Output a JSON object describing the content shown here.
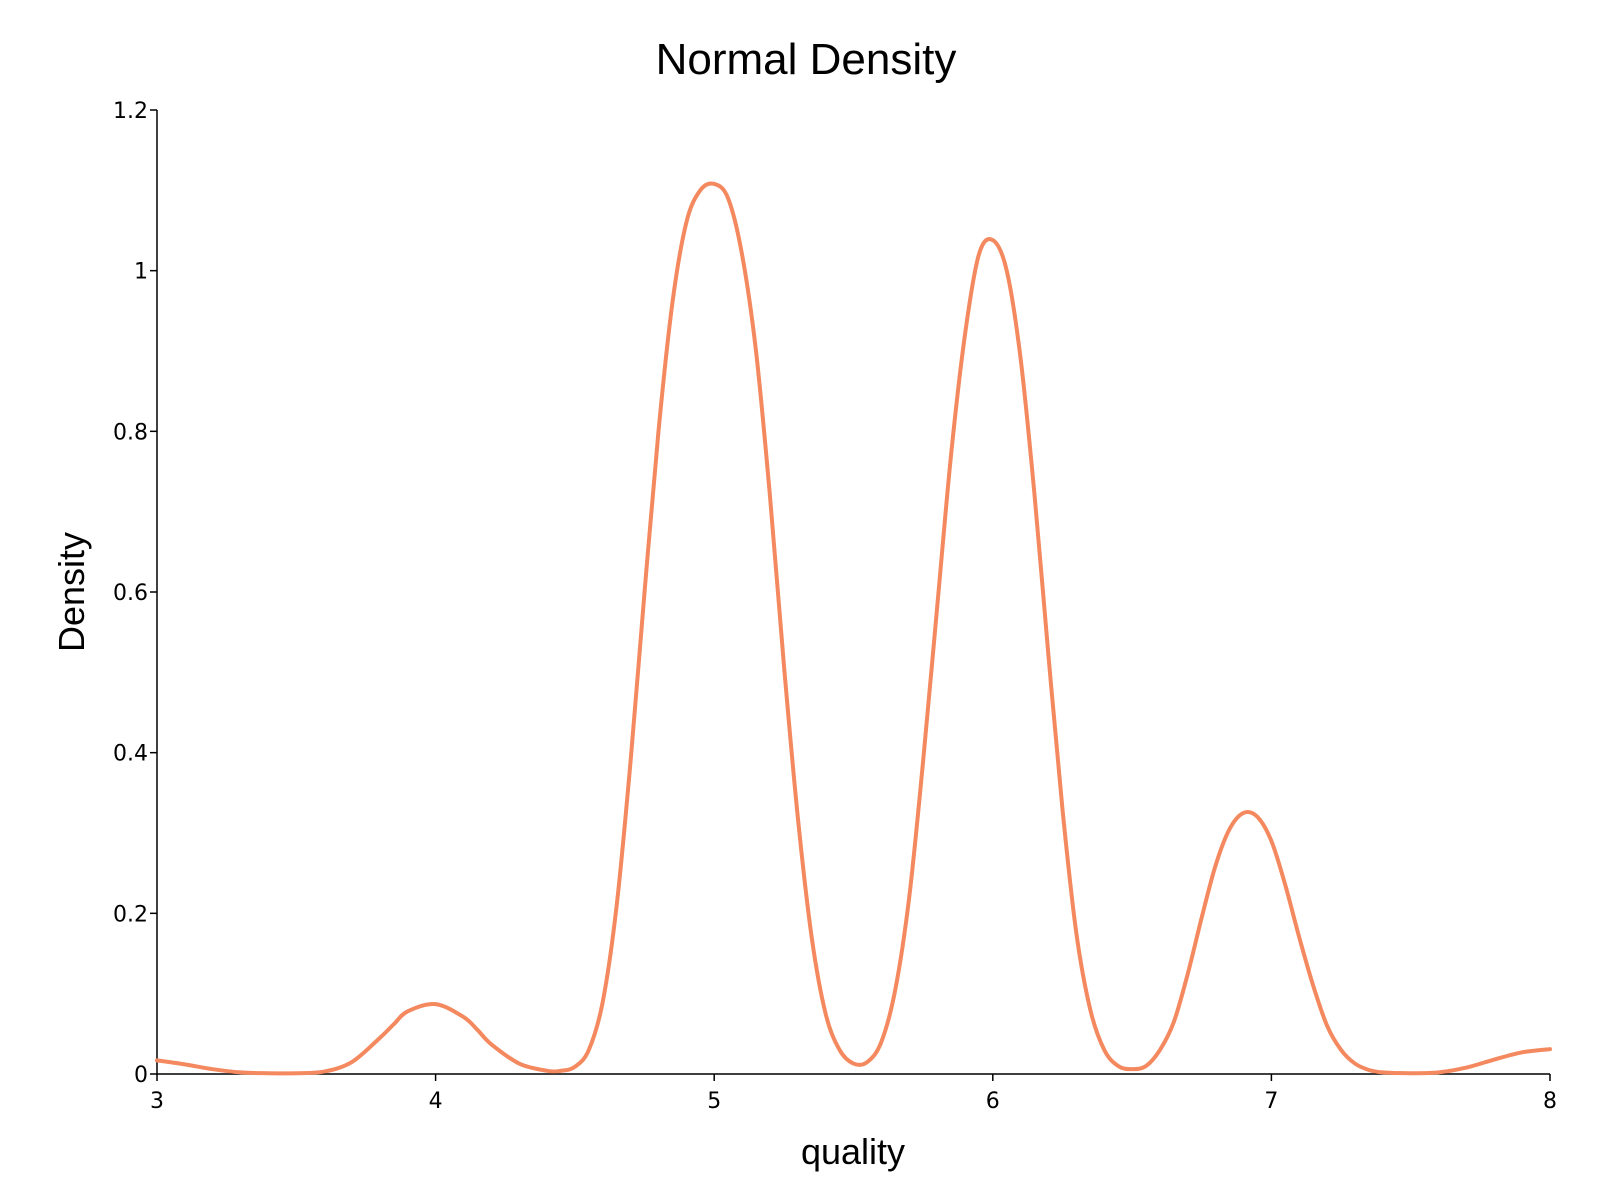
{
  "chart_data": {
    "type": "line",
    "title": "Normal Density",
    "xlabel": "quality",
    "ylabel": "Density",
    "xlim": [
      3,
      8
    ],
    "ylim": [
      0,
      1.2
    ],
    "x_ticks": [
      3,
      4,
      5,
      6,
      7,
      8
    ],
    "x_tick_labels": [
      "3",
      "4",
      "5",
      "6",
      "7",
      "8"
    ],
    "y_ticks": [
      0,
      0.2,
      0.4,
      0.6,
      0.8,
      1,
      1.2
    ],
    "y_tick_labels": [
      "0",
      "0.2",
      "0.4",
      "0.6",
      "0.8",
      "1",
      "1.2"
    ],
    "grid": false,
    "series": [
      {
        "color": "#F4895F",
        "x": [
          3.0,
          3.1,
          3.2,
          3.3,
          3.4,
          3.5,
          3.6,
          3.7,
          3.8,
          3.85,
          3.9,
          4.0,
          4.1,
          4.15,
          4.2,
          4.3,
          4.4,
          4.45,
          4.5,
          4.55,
          4.6,
          4.65,
          4.7,
          4.75,
          4.8,
          4.85,
          4.9,
          4.95,
          5.0,
          5.05,
          5.1,
          5.15,
          5.2,
          5.25,
          5.3,
          5.35,
          5.4,
          5.45,
          5.5,
          5.55,
          5.6,
          5.65,
          5.7,
          5.75,
          5.8,
          5.85,
          5.9,
          5.95,
          6.0,
          6.05,
          6.1,
          6.15,
          6.2,
          6.25,
          6.3,
          6.35,
          6.4,
          6.45,
          6.5,
          6.55,
          6.6,
          6.65,
          6.7,
          6.75,
          6.8,
          6.85,
          6.9,
          6.95,
          7.0,
          7.05,
          7.1,
          7.15,
          7.2,
          7.25,
          7.3,
          7.35,
          7.4,
          7.5,
          7.6,
          7.7,
          7.8,
          7.9,
          8.0
        ],
        "y": [
          0.017,
          0.012,
          0.006,
          0.002,
          0.001,
          0.001,
          0.003,
          0.015,
          0.045,
          0.062,
          0.078,
          0.087,
          0.071,
          0.055,
          0.037,
          0.013,
          0.004,
          0.004,
          0.009,
          0.03,
          0.09,
          0.21,
          0.39,
          0.6,
          0.8,
          0.96,
          1.06,
          1.1,
          1.108,
          1.09,
          1.02,
          0.9,
          0.72,
          0.51,
          0.32,
          0.17,
          0.075,
          0.03,
          0.013,
          0.015,
          0.04,
          0.105,
          0.22,
          0.39,
          0.58,
          0.77,
          0.92,
          1.02,
          1.038,
          1.0,
          0.89,
          0.72,
          0.52,
          0.33,
          0.175,
          0.08,
          0.03,
          0.01,
          0.006,
          0.01,
          0.03,
          0.065,
          0.125,
          0.195,
          0.26,
          0.305,
          0.325,
          0.32,
          0.29,
          0.235,
          0.17,
          0.11,
          0.06,
          0.03,
          0.013,
          0.005,
          0.002,
          0.001,
          0.002,
          0.008,
          0.018,
          0.027,
          0.031
        ]
      }
    ]
  }
}
